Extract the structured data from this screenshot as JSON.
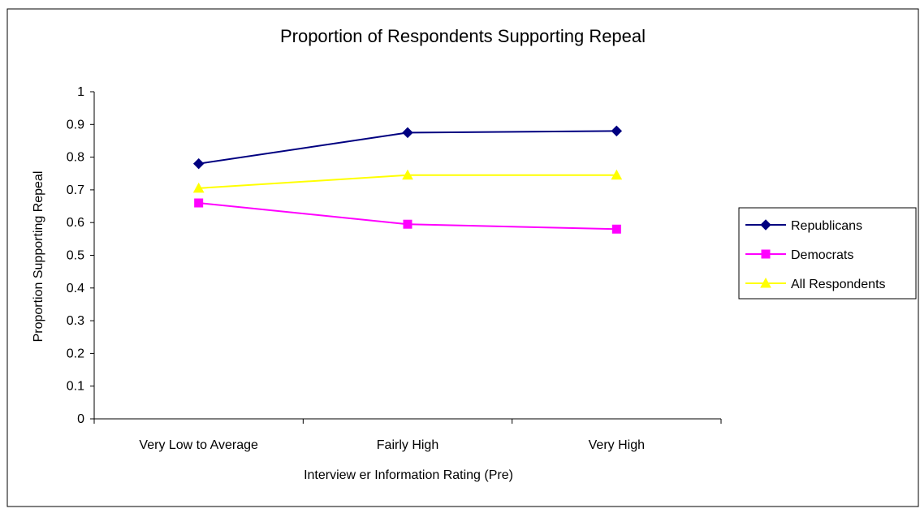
{
  "chart_data": {
    "type": "line",
    "title": "Proportion of Respondents Supporting Repeal",
    "xlabel": "Interview er Information Rating (Pre)",
    "ylabel": "Proportion Supporting Repeal",
    "categories": [
      "Very Low  to Average",
      "Fairly High",
      "Very High"
    ],
    "ylim": [
      0,
      1
    ],
    "yticks": [
      "0",
      "0.1",
      "0.2",
      "0.3",
      "0.4",
      "0.5",
      "0.6",
      "0.7",
      "0.8",
      "0.9",
      "1"
    ],
    "grid": false,
    "legend_position": "right",
    "series": [
      {
        "name": "Republicans",
        "values": [
          0.78,
          0.875,
          0.88
        ],
        "color": "#000080",
        "marker": "diamond"
      },
      {
        "name": "Democrats",
        "values": [
          0.66,
          0.595,
          0.58
        ],
        "color": "#ff00ff",
        "marker": "square"
      },
      {
        "name": "All Respondents",
        "values": [
          0.705,
          0.745,
          0.745
        ],
        "color": "#ffff00",
        "marker": "triangle"
      }
    ]
  }
}
